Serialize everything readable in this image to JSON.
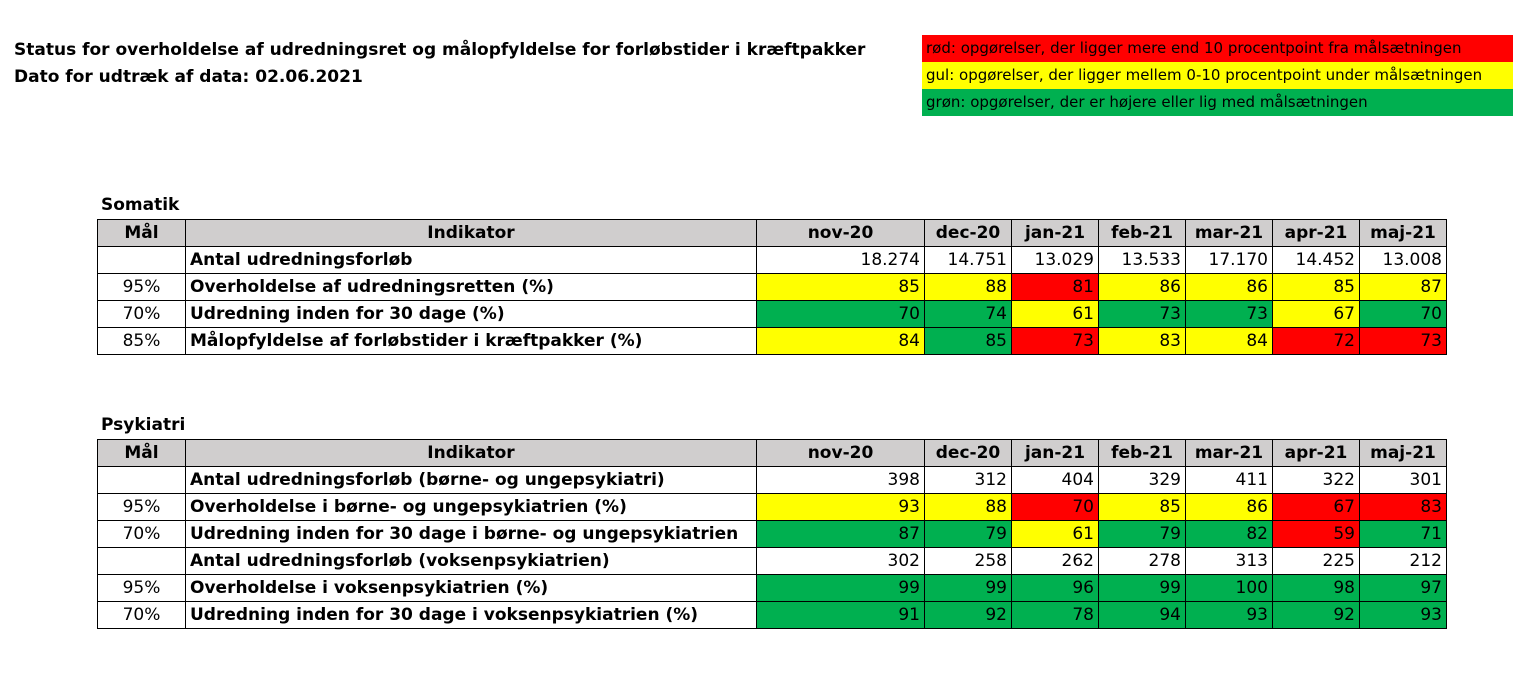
{
  "title": {
    "line1": "Status for overholdelse af udredningsret og målopfyldelse for forløbstider i kræftpakker",
    "line2": "Dato for udtræk af data: 02.06.2021"
  },
  "legend": [
    {
      "text": "rød: opgørelser, der ligger mere end 10 procentpoint fra målsætningen",
      "color": "#ff0000"
    },
    {
      "text": "gul: opgørelser, der ligger mellem 0-10 procentpoint under målsætningen",
      "color": "#ffff00"
    },
    {
      "text": "grøn: opgørelser, der er højere eller lig med målsætningen",
      "color": "#00b050"
    }
  ],
  "colors": {
    "red": "#ff0000",
    "yellow": "#ffff00",
    "green": "#00b050",
    "none": "#ffffff",
    "header": "#d0cece"
  },
  "headers": {
    "goal": "Mål",
    "indicator": "Indikator",
    "months": [
      "nov-20",
      "dec-20",
      "jan-21",
      "feb-21",
      "mar-21",
      "apr-21",
      "maj-21"
    ]
  },
  "somatik": {
    "label": "Somatik",
    "rows": [
      {
        "goal": "",
        "indicator": "Antal udredningsforløb",
        "values": [
          "18.274",
          "14.751",
          "13.029",
          "13.533",
          "17.170",
          "14.452",
          "13.008"
        ],
        "status": [
          "none",
          "none",
          "none",
          "none",
          "none",
          "none",
          "none"
        ]
      },
      {
        "goal": "95%",
        "indicator": "Overholdelse af udredningsretten (%)",
        "values": [
          "85",
          "88",
          "81",
          "86",
          "86",
          "85",
          "87"
        ],
        "status": [
          "yellow",
          "yellow",
          "red",
          "yellow",
          "yellow",
          "yellow",
          "yellow"
        ]
      },
      {
        "goal": "70%",
        "indicator": "Udredning inden for 30 dage (%)",
        "values": [
          "70",
          "74",
          "61",
          "73",
          "73",
          "67",
          "70"
        ],
        "status": [
          "green",
          "green",
          "yellow",
          "green",
          "green",
          "yellow",
          "green"
        ]
      },
      {
        "goal": "85%",
        "indicator": "Målopfyldelse af forløbstider i kræftpakker (%)",
        "values": [
          "84",
          "85",
          "73",
          "83",
          "84",
          "72",
          "73"
        ],
        "status": [
          "yellow",
          "green",
          "red",
          "yellow",
          "yellow",
          "red",
          "red"
        ]
      }
    ]
  },
  "psykiatri": {
    "label": "Psykiatri",
    "rows": [
      {
        "goal": "",
        "indicator": "Antal udredningsforløb (børne- og ungepsykiatri)",
        "values": [
          "398",
          "312",
          "404",
          "329",
          "411",
          "322",
          "301"
        ],
        "status": [
          "none",
          "none",
          "none",
          "none",
          "none",
          "none",
          "none"
        ]
      },
      {
        "goal": "95%",
        "indicator": "Overholdelse i børne- og ungepsykiatrien (%)",
        "values": [
          "93",
          "88",
          "70",
          "85",
          "86",
          "67",
          "83"
        ],
        "status": [
          "yellow",
          "yellow",
          "red",
          "yellow",
          "yellow",
          "red",
          "red"
        ]
      },
      {
        "goal": "70%",
        "indicator": "Udredning inden for 30 dage i børne- og ungepsykiatrien",
        "values": [
          "87",
          "79",
          "61",
          "79",
          "82",
          "59",
          "71"
        ],
        "status": [
          "green",
          "green",
          "yellow",
          "green",
          "green",
          "red",
          "green"
        ]
      },
      {
        "goal": "",
        "indicator": "Antal udredningsforløb (voksenpsykiatrien)",
        "values": [
          "302",
          "258",
          "262",
          "278",
          "313",
          "225",
          "212"
        ],
        "status": [
          "none",
          "none",
          "none",
          "none",
          "none",
          "none",
          "none"
        ]
      },
      {
        "goal": "95%",
        "indicator": "Overholdelse i voksenpsykiatrien (%)",
        "values": [
          "99",
          "99",
          "96",
          "99",
          "100",
          "98",
          "97"
        ],
        "status": [
          "green",
          "green",
          "green",
          "green",
          "green",
          "green",
          "green"
        ]
      },
      {
        "goal": "70%",
        "indicator": "Udredning inden for 30 dage i voksenpsykiatrien (%)",
        "values": [
          "91",
          "92",
          "78",
          "94",
          "93",
          "92",
          "93"
        ],
        "status": [
          "green",
          "green",
          "green",
          "green",
          "green",
          "green",
          "green"
        ]
      }
    ]
  }
}
